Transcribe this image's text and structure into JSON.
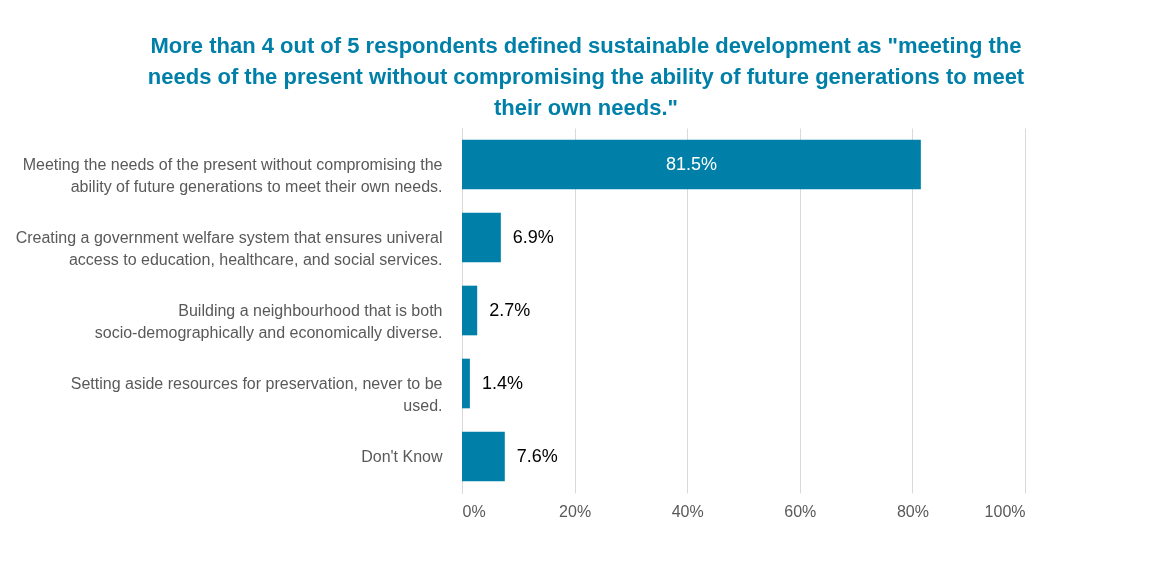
{
  "chart_data": {
    "type": "bar",
    "orientation": "horizontal",
    "title": "More than 4 out of 5 respondents defined sustainable development as \"meeting the needs of the present without compromising the ability of future generations to meet their own needs.\"",
    "categories": [
      "Meeting the needs of the present without compromising the ability of future generations to meet their own needs.",
      "Creating a government welfare system that ensures univeral access to education, healthcare, and social services.",
      "Building a neighbourhood that is both socio-demographically and economically diverse.",
      "Setting aside resources for preservation, never to be used.",
      "Don't Know"
    ],
    "values": [
      81.5,
      6.9,
      2.7,
      1.4,
      7.6
    ],
    "value_labels": [
      "81.5%",
      "6.9%",
      "2.7%",
      "1.4%",
      "7.6%"
    ],
    "color": "#0080a8",
    "xlim": [
      0,
      100
    ],
    "xticks": [
      {
        "value": 0,
        "label": "0%"
      },
      {
        "value": 20,
        "label": "20%"
      },
      {
        "value": 40,
        "label": "40%"
      },
      {
        "value": 60,
        "label": "60%"
      },
      {
        "value": 80,
        "label": "80%"
      },
      {
        "value": 100,
        "label": "100%"
      }
    ],
    "grid": "x"
  }
}
